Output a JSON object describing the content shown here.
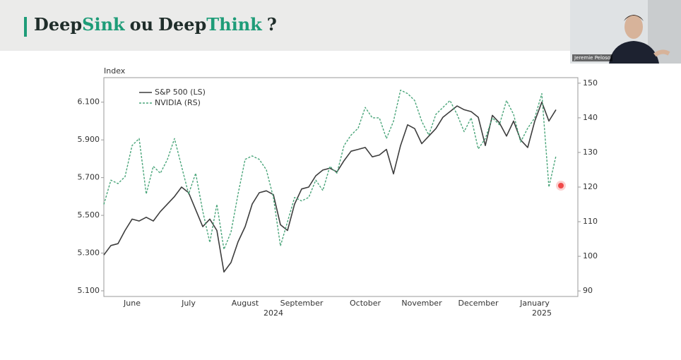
{
  "slide": {
    "title_parts": [
      "Deep",
      "Sink",
      "ou",
      "Deep",
      "Think",
      "?"
    ]
  },
  "webcam": {
    "name": "Jeremie Peloso"
  },
  "chart_data": {
    "type": "line",
    "y_label": "Index",
    "categories": [
      null,
      null,
      null,
      null,
      "June",
      null,
      null,
      null,
      null,
      null,
      null,
      null,
      "July",
      null,
      null,
      null,
      null,
      null,
      null,
      null,
      "August",
      null,
      null,
      null,
      null,
      null,
      null,
      null,
      "September",
      null,
      null,
      null,
      null,
      null,
      null,
      null,
      null,
      "October",
      null,
      null,
      null,
      null,
      null,
      null,
      null,
      "November",
      null,
      null,
      null,
      null,
      null,
      null,
      null,
      "December",
      null,
      null,
      null,
      null,
      null,
      null,
      null,
      "January",
      null,
      null,
      null
    ],
    "year_categories": [
      null,
      null,
      null,
      null,
      null,
      null,
      null,
      null,
      null,
      null,
      null,
      null,
      null,
      null,
      null,
      null,
      null,
      null,
      null,
      null,
      null,
      null,
      null,
      null,
      "2024",
      null,
      null,
      null,
      null,
      null,
      null,
      null,
      null,
      null,
      null,
      null,
      null,
      null,
      null,
      null,
      null,
      null,
      null,
      null,
      null,
      null,
      null,
      null,
      null,
      null,
      null,
      null,
      null,
      null,
      null,
      null,
      null,
      null,
      null,
      null,
      null,
      null,
      "2025",
      null,
      null
    ],
    "series": [
      {
        "name": "S&P 500 (LS)",
        "color": "#3d3d3d",
        "dash": false,
        "axis": "y",
        "values": [
          5290,
          5340,
          5350,
          5420,
          5480,
          5470,
          5490,
          5470,
          5520,
          5560,
          5600,
          5650,
          5620,
          5530,
          5440,
          5480,
          5420,
          5200,
          5250,
          5360,
          5440,
          5560,
          5620,
          5630,
          5610,
          5450,
          5420,
          5560,
          5640,
          5650,
          5710,
          5740,
          5750,
          5730,
          5790,
          5840,
          5850,
          5860,
          5810,
          5820,
          5850,
          5720,
          5870,
          5980,
          5960,
          5880,
          5920,
          5960,
          6020,
          6050,
          6080,
          6060,
          6050,
          6020,
          5870,
          6030,
          5990,
          5920,
          6000,
          5900,
          5860,
          6000,
          6100,
          6000,
          6060
        ]
      },
      {
        "name": "NVIDIA (RS)",
        "color": "#4aa57a",
        "dash": true,
        "axis": "y2",
        "values": [
          115,
          122,
          121,
          123,
          132,
          134,
          118,
          126,
          124,
          128,
          134,
          126,
          118,
          124,
          113,
          104,
          115,
          102,
          107,
          118,
          128,
          129,
          128,
          125,
          117,
          103,
          110,
          117,
          116,
          117,
          122,
          119,
          126,
          124,
          132,
          135,
          137,
          143,
          140,
          140,
          134,
          139,
          148,
          147,
          145,
          139,
          135,
          141,
          143,
          145,
          141,
          136,
          140,
          131,
          134,
          140,
          138,
          145,
          141,
          133,
          137,
          140,
          147,
          120,
          129
        ]
      }
    ],
    "ylim": [
      5070,
      6230
    ],
    "yticks": [
      {
        "value": 5100,
        "label": "5.100"
      },
      {
        "value": 5300,
        "label": "5.300"
      },
      {
        "value": 5500,
        "label": "5.500"
      },
      {
        "value": 5700,
        "label": "5.700"
      },
      {
        "value": 5900,
        "label": "5.900"
      },
      {
        "value": 6100,
        "label": "6.100"
      }
    ],
    "y2lim": [
      88.4,
      151.6
    ],
    "y2ticks": [
      90,
      100,
      110,
      120,
      130,
      140,
      150
    ],
    "legend": "upper left",
    "grid": false
  }
}
